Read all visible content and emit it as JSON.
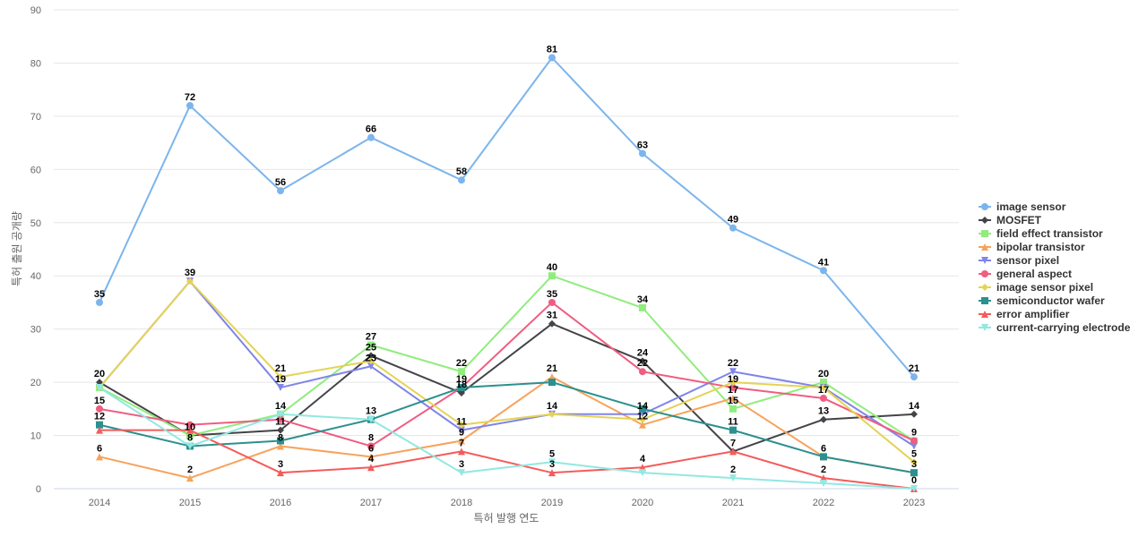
{
  "chart_data": {
    "type": "line",
    "title": "",
    "xlabel": "특허 발행 연도",
    "ylabel": "특허 출원 공개량",
    "categories": [
      "2014",
      "2015",
      "2016",
      "2017",
      "2018",
      "2019",
      "2020",
      "2021",
      "2022",
      "2023"
    ],
    "ylim": [
      0,
      90
    ],
    "yticks": [
      0,
      10,
      20,
      30,
      40,
      50,
      60,
      70,
      80,
      90
    ],
    "grid": true,
    "legend_position": "right",
    "series": [
      {
        "name": "image sensor",
        "color": "#7cb5ec",
        "marker": "circle",
        "values": [
          35,
          72,
          56,
          66,
          58,
          81,
          63,
          49,
          41,
          21
        ]
      },
      {
        "name": "MOSFET",
        "color": "#434348",
        "marker": "diamond",
        "values": [
          20,
          10,
          11,
          25,
          18,
          31,
          24,
          7,
          13,
          14
        ]
      },
      {
        "name": "field effect transistor",
        "color": "#90ed7d",
        "marker": "square",
        "values": [
          19,
          10,
          14,
          27,
          22,
          40,
          34,
          15,
          20,
          9
        ]
      },
      {
        "name": "bipolar transistor",
        "color": "#f7a35c",
        "marker": "triangle",
        "values": [
          6,
          2,
          8,
          6,
          9,
          21,
          12,
          17,
          6,
          3
        ]
      },
      {
        "name": "sensor pixel",
        "color": "#8085e9",
        "marker": "triangle-down",
        "values": [
          19,
          39,
          19,
          23,
          11,
          14,
          14,
          22,
          19,
          8
        ]
      },
      {
        "name": "general aspect",
        "color": "#f15c80",
        "marker": "circle",
        "values": [
          15,
          12,
          13,
          8,
          19,
          35,
          22,
          19,
          17,
          9
        ]
      },
      {
        "name": "image sensor pixel",
        "color": "#e4d354",
        "marker": "diamond",
        "values": [
          19,
          39,
          21,
          24,
          12,
          14,
          13,
          20,
          19,
          5
        ]
      },
      {
        "name": "semiconductor wafer",
        "color": "#2b908f",
        "marker": "square",
        "values": [
          12,
          8,
          9,
          13,
          19,
          20,
          15,
          11,
          6,
          3
        ]
      },
      {
        "name": "error amplifier",
        "color": "#f45b5b",
        "marker": "triangle",
        "values": [
          11,
          11,
          3,
          4,
          7,
          3,
          4,
          7,
          2,
          0
        ]
      },
      {
        "name": "current-carrying electrode",
        "color": "#91e8e1",
        "marker": "triangle-down",
        "values": [
          19,
          8,
          14,
          13,
          3,
          5,
          3,
          2,
          1,
          0
        ]
      }
    ],
    "data_labels": [
      {
        "x": "2014",
        "y": 35,
        "text": "35"
      },
      {
        "x": "2015",
        "y": 72,
        "text": "72"
      },
      {
        "x": "2016",
        "y": 56,
        "text": "56"
      },
      {
        "x": "2017",
        "y": 66,
        "text": "66"
      },
      {
        "x": "2018",
        "y": 58,
        "text": "58"
      },
      {
        "x": "2019",
        "y": 81,
        "text": "81"
      },
      {
        "x": "2020",
        "y": 63,
        "text": "63"
      },
      {
        "x": "2021",
        "y": 49,
        "text": "49"
      },
      {
        "x": "2022",
        "y": 41,
        "text": "41"
      },
      {
        "x": "2023",
        "y": 21,
        "text": "21"
      },
      {
        "x": "2014",
        "y": 20,
        "text": "20"
      },
      {
        "x": "2015",
        "y": 39,
        "text": "39"
      },
      {
        "x": "2016",
        "y": 21,
        "text": "21"
      },
      {
        "x": "2017",
        "y": 27,
        "text": "27"
      },
      {
        "x": "2018",
        "y": 22,
        "text": "22"
      },
      {
        "x": "2019",
        "y": 40,
        "text": "40"
      },
      {
        "x": "2020",
        "y": 34,
        "text": "34"
      },
      {
        "x": "2021",
        "y": 22,
        "text": "22"
      },
      {
        "x": "2022",
        "y": 20,
        "text": "20"
      },
      {
        "x": "2023",
        "y": 14,
        "text": "14"
      },
      {
        "x": "2014",
        "y": 15,
        "text": "15"
      },
      {
        "x": "2015",
        "y": 10,
        "text": "10"
      },
      {
        "x": "2016",
        "y": 19,
        "text": "19"
      },
      {
        "x": "2017",
        "y": 25,
        "text": "25"
      },
      {
        "x": "2018",
        "y": 19,
        "text": "19"
      },
      {
        "x": "2019",
        "y": 35,
        "text": "35"
      },
      {
        "x": "2020",
        "y": 24,
        "text": "24"
      },
      {
        "x": "2021",
        "y": 19,
        "text": "19"
      },
      {
        "x": "2022",
        "y": 17,
        "text": "17"
      },
      {
        "x": "2023",
        "y": 9,
        "text": "9"
      },
      {
        "x": "2014",
        "y": 12,
        "text": "12"
      },
      {
        "x": "2015",
        "y": 8,
        "text": "8"
      },
      {
        "x": "2016",
        "y": 14,
        "text": "14"
      },
      {
        "x": "2017",
        "y": 23,
        "text": "23"
      },
      {
        "x": "2018",
        "y": 18,
        "text": "18"
      },
      {
        "x": "2019",
        "y": 31,
        "text": "31"
      },
      {
        "x": "2020",
        "y": 22,
        "text": "22"
      },
      {
        "x": "2021",
        "y": 17,
        "text": "17"
      },
      {
        "x": "2022",
        "y": 13,
        "text": "13"
      },
      {
        "x": "2023",
        "y": 5,
        "text": "5"
      },
      {
        "x": "2014",
        "y": 6,
        "text": "6"
      },
      {
        "x": "2015",
        "y": 2,
        "text": "2"
      },
      {
        "x": "2016",
        "y": 11,
        "text": "11"
      },
      {
        "x": "2017",
        "y": 13,
        "text": "13"
      },
      {
        "x": "2018",
        "y": 11,
        "text": "11"
      },
      {
        "x": "2019",
        "y": 21,
        "text": "21"
      },
      {
        "x": "2020",
        "y": 14,
        "text": "14"
      },
      {
        "x": "2021",
        "y": 15,
        "text": "15"
      },
      {
        "x": "2022",
        "y": 6,
        "text": "6"
      },
      {
        "x": "2023",
        "y": 3,
        "text": "3"
      },
      {
        "x": "2016",
        "y": 8,
        "text": "8"
      },
      {
        "x": "2017",
        "y": 8,
        "text": "8"
      },
      {
        "x": "2018",
        "y": 9,
        "text": "9"
      },
      {
        "x": "2019",
        "y": 14,
        "text": "14"
      },
      {
        "x": "2020",
        "y": 12,
        "text": "12"
      },
      {
        "x": "2021",
        "y": 11,
        "text": "11"
      },
      {
        "x": "2022",
        "y": 2,
        "text": "2"
      },
      {
        "x": "2023",
        "y": 0,
        "text": "0"
      },
      {
        "x": "2016",
        "y": 3,
        "text": "3"
      },
      {
        "x": "2017",
        "y": 6,
        "text": "6"
      },
      {
        "x": "2018",
        "y": 7,
        "text": "7"
      },
      {
        "x": "2019",
        "y": 5,
        "text": "5"
      },
      {
        "x": "2020",
        "y": 4,
        "text": "4"
      },
      {
        "x": "2021",
        "y": 7,
        "text": "7"
      },
      {
        "x": "2017",
        "y": 4,
        "text": "4"
      },
      {
        "x": "2018",
        "y": 3,
        "text": "3"
      },
      {
        "x": "2019",
        "y": 3,
        "text": "3"
      },
      {
        "x": "2021",
        "y": 2,
        "text": "2"
      }
    ]
  }
}
